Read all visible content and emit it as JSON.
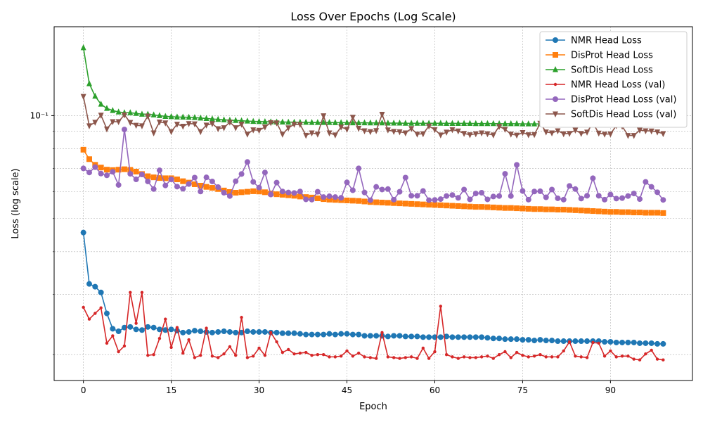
{
  "chart_data": {
    "type": "line",
    "title": "Loss Over Epochs (Log Scale)",
    "xlabel": "Epoch",
    "ylabel": "Loss (log scale)",
    "yscale": "log",
    "xlim": [
      -5,
      104
    ],
    "ylim": [
      0.0168,
      0.182
    ],
    "xticks": [
      0,
      15,
      30,
      45,
      60,
      75,
      90
    ],
    "yticks": [
      0.1
    ],
    "ytick_labels": [
      "10⁻¹"
    ],
    "grid": true,
    "legend_position": "top-right",
    "x": [
      0,
      1,
      2,
      3,
      4,
      5,
      6,
      7,
      8,
      9,
      10,
      11,
      12,
      13,
      14,
      15,
      16,
      17,
      18,
      19,
      20,
      21,
      22,
      23,
      24,
      25,
      26,
      27,
      28,
      29,
      30,
      31,
      32,
      33,
      34,
      35,
      36,
      37,
      38,
      39,
      40,
      41,
      42,
      43,
      44,
      45,
      46,
      47,
      48,
      49,
      50,
      51,
      52,
      53,
      54,
      55,
      56,
      57,
      58,
      59,
      60,
      61,
      62,
      63,
      64,
      65,
      66,
      67,
      68,
      69,
      70,
      71,
      72,
      73,
      74,
      75,
      76,
      77,
      78,
      79,
      80,
      81,
      82,
      83,
      84,
      85,
      86,
      87,
      88,
      89,
      90,
      91,
      92,
      93,
      94,
      95,
      96,
      97,
      98,
      99
    ],
    "series": [
      {
        "name": "NMR Head Loss",
        "color": "#1f77b4",
        "marker": "circle",
        "values": [
          0.0455,
          0.0322,
          0.0316,
          0.0304,
          0.0264,
          0.0238,
          0.0234,
          0.024,
          0.0241,
          0.0237,
          0.0236,
          0.0241,
          0.024,
          0.0237,
          0.0236,
          0.0237,
          0.0235,
          0.0232,
          0.0233,
          0.0235,
          0.0234,
          0.0233,
          0.0232,
          0.0233,
          0.0234,
          0.0233,
          0.0232,
          0.0232,
          0.0234,
          0.0233,
          0.0233,
          0.0233,
          0.0232,
          0.0232,
          0.0231,
          0.0231,
          0.0231,
          0.023,
          0.0229,
          0.0229,
          0.0229,
          0.0229,
          0.023,
          0.0229,
          0.023,
          0.023,
          0.0229,
          0.0229,
          0.0227,
          0.0227,
          0.0227,
          0.0227,
          0.0226,
          0.0227,
          0.0227,
          0.0226,
          0.0226,
          0.0226,
          0.0225,
          0.0225,
          0.0225,
          0.0225,
          0.0226,
          0.0225,
          0.0225,
          0.0225,
          0.0225,
          0.0225,
          0.0225,
          0.0224,
          0.0223,
          0.0223,
          0.0222,
          0.0222,
          0.0222,
          0.0221,
          0.0221,
          0.022,
          0.0221,
          0.022,
          0.022,
          0.0219,
          0.0219,
          0.0219,
          0.0219,
          0.0219,
          0.0219,
          0.0219,
          0.0219,
          0.0218,
          0.0218,
          0.0217,
          0.0217,
          0.0217,
          0.0217,
          0.0216,
          0.0216,
          0.0216,
          0.0215,
          0.0215
        ]
      },
      {
        "name": "DisProt Head Loss",
        "color": "#ff7f0e",
        "marker": "square",
        "values": [
          0.0795,
          0.0746,
          0.0718,
          0.0705,
          0.0695,
          0.0693,
          0.0695,
          0.0697,
          0.0694,
          0.0686,
          0.0675,
          0.0665,
          0.066,
          0.0657,
          0.0656,
          0.0656,
          0.0651,
          0.0643,
          0.0637,
          0.063,
          0.0624,
          0.0619,
          0.0615,
          0.061,
          0.0604,
          0.0598,
          0.0595,
          0.0597,
          0.0599,
          0.0601,
          0.06,
          0.0597,
          0.0592,
          0.0589,
          0.0587,
          0.0585,
          0.0583,
          0.058,
          0.0578,
          0.0576,
          0.0573,
          0.057,
          0.0568,
          0.0567,
          0.0566,
          0.0565,
          0.0564,
          0.0563,
          0.0561,
          0.0559,
          0.0558,
          0.0557,
          0.0556,
          0.0555,
          0.0554,
          0.0553,
          0.0552,
          0.0551,
          0.055,
          0.0549,
          0.0548,
          0.0547,
          0.0546,
          0.0545,
          0.0544,
          0.0543,
          0.0542,
          0.0541,
          0.0541,
          0.054,
          0.0539,
          0.0538,
          0.0537,
          0.0537,
          0.0536,
          0.0535,
          0.0534,
          0.0533,
          0.0533,
          0.0532,
          0.0532,
          0.0531,
          0.0531,
          0.053,
          0.0529,
          0.0528,
          0.0527,
          0.0526,
          0.0525,
          0.0524,
          0.0523,
          0.0523,
          0.0522,
          0.0522,
          0.0521,
          0.0521,
          0.052,
          0.052,
          0.052,
          0.0519
        ]
      },
      {
        "name": "SoftDis Head Loss",
        "color": "#2ca02c",
        "marker": "triangle",
        "values": [
          0.158,
          0.124,
          0.114,
          0.108,
          0.105,
          0.1035,
          0.1025,
          0.102,
          0.102,
          0.1015,
          0.101,
          0.101,
          0.1005,
          0.1,
          0.0995,
          0.0993,
          0.0991,
          0.099,
          0.0989,
          0.0987,
          0.0984,
          0.0981,
          0.0978,
          0.0975,
          0.0972,
          0.097,
          0.0968,
          0.0966,
          0.0964,
          0.0962,
          0.0961,
          0.096,
          0.0959,
          0.0958,
          0.0958,
          0.0957,
          0.0957,
          0.0956,
          0.0956,
          0.0955,
          0.0955,
          0.0955,
          0.0955,
          0.0954,
          0.0954,
          0.0954,
          0.0953,
          0.0953,
          0.0953,
          0.0952,
          0.0952,
          0.0952,
          0.0951,
          0.0951,
          0.0951,
          0.095,
          0.095,
          0.095,
          0.095,
          0.095,
          0.095,
          0.095,
          0.0949,
          0.0949,
          0.0949,
          0.0949,
          0.0949,
          0.0948,
          0.0948,
          0.0948,
          0.0948,
          0.0947,
          0.0947,
          0.0947,
          0.0947,
          0.0946,
          0.0946,
          0.0946,
          0.0946,
          0.0946,
          0.0946,
          0.0945,
          0.0945,
          0.0945,
          0.0945,
          0.0944,
          0.0944,
          0.0944,
          0.0944,
          0.0943,
          0.0943,
          0.0943,
          0.0943,
          0.0942,
          0.0942,
          0.0942,
          0.0942,
          0.0941,
          0.0941,
          0.0941
        ]
      },
      {
        "name": "NMR Head Loss (val)",
        "color": "#d62728",
        "marker": "dot",
        "values": [
          0.0275,
          0.0254,
          0.0264,
          0.0274,
          0.0216,
          0.0227,
          0.0204,
          0.0212,
          0.0304,
          0.0247,
          0.0304,
          0.0199,
          0.02,
          0.0223,
          0.0254,
          0.021,
          0.024,
          0.0202,
          0.0221,
          0.0196,
          0.0199,
          0.0239,
          0.0198,
          0.0196,
          0.0201,
          0.0211,
          0.0199,
          0.0257,
          0.0196,
          0.0198,
          0.0209,
          0.0199,
          0.0232,
          0.0218,
          0.0203,
          0.0207,
          0.0201,
          0.0202,
          0.0203,
          0.0199,
          0.02,
          0.02,
          0.0197,
          0.0197,
          0.0198,
          0.0205,
          0.0198,
          0.0202,
          0.0197,
          0.0196,
          0.0195,
          0.0232,
          0.0197,
          0.0196,
          0.0195,
          0.0196,
          0.0197,
          0.0195,
          0.0209,
          0.0195,
          0.0204,
          0.0277,
          0.02,
          0.0197,
          0.0195,
          0.0197,
          0.0196,
          0.0196,
          0.0197,
          0.0198,
          0.0195,
          0.02,
          0.0204,
          0.0196,
          0.0203,
          0.0199,
          0.0197,
          0.0198,
          0.02,
          0.0197,
          0.0197,
          0.0197,
          0.0205,
          0.0218,
          0.0198,
          0.0197,
          0.0196,
          0.0217,
          0.0216,
          0.0198,
          0.0205,
          0.0197,
          0.0198,
          0.0198,
          0.0194,
          0.0193,
          0.0201,
          0.0206,
          0.0194,
          0.0193
        ]
      },
      {
        "name": "DisProt Head Loss (val)",
        "color": "#9467bd",
        "marker": "circle",
        "values": [
          0.0701,
          0.0682,
          0.0707,
          0.0677,
          0.0669,
          0.0685,
          0.0627,
          0.0911,
          0.0676,
          0.0651,
          0.0673,
          0.0642,
          0.061,
          0.0692,
          0.0625,
          0.0651,
          0.062,
          0.0611,
          0.0631,
          0.0659,
          0.06,
          0.066,
          0.0642,
          0.0618,
          0.0595,
          0.0582,
          0.0643,
          0.0675,
          0.0732,
          0.064,
          0.0616,
          0.0682,
          0.0588,
          0.0637,
          0.06,
          0.0596,
          0.0594,
          0.06,
          0.0569,
          0.0568,
          0.0599,
          0.0578,
          0.0581,
          0.0578,
          0.0575,
          0.0638,
          0.0605,
          0.0701,
          0.0596,
          0.0566,
          0.0619,
          0.0608,
          0.061,
          0.0568,
          0.0599,
          0.0659,
          0.0583,
          0.0583,
          0.0602,
          0.0566,
          0.0567,
          0.057,
          0.0582,
          0.0586,
          0.0575,
          0.0608,
          0.0569,
          0.0592,
          0.0595,
          0.0569,
          0.058,
          0.0582,
          0.0676,
          0.0582,
          0.0718,
          0.0602,
          0.0568,
          0.06,
          0.0601,
          0.0577,
          0.0608,
          0.0573,
          0.0568,
          0.0623,
          0.061,
          0.0572,
          0.0583,
          0.0656,
          0.0583,
          0.0568,
          0.0588,
          0.0572,
          0.0574,
          0.0582,
          0.0592,
          0.057,
          0.064,
          0.0619,
          0.0597,
          0.0567
        ]
      },
      {
        "name": "SoftDis Head Loss (val)",
        "color": "#8c564b",
        "marker": "triangle-down",
        "values": [
          0.1138,
          0.0934,
          0.0956,
          0.1003,
          0.0914,
          0.096,
          0.096,
          0.1005,
          0.0955,
          0.0937,
          0.0934,
          0.0997,
          0.089,
          0.0958,
          0.0952,
          0.0898,
          0.0944,
          0.0931,
          0.0948,
          0.0946,
          0.0898,
          0.0938,
          0.0948,
          0.0916,
          0.0922,
          0.0957,
          0.0922,
          0.0944,
          0.0883,
          0.0909,
          0.0906,
          0.0926,
          0.0954,
          0.0952,
          0.0882,
          0.0921,
          0.0943,
          0.0942,
          0.0876,
          0.089,
          0.0883,
          0.0999,
          0.089,
          0.0878,
          0.0926,
          0.0912,
          0.0989,
          0.0918,
          0.0903,
          0.0898,
          0.0904,
          0.1009,
          0.0908,
          0.0899,
          0.0897,
          0.089,
          0.0917,
          0.0883,
          0.0885,
          0.0932,
          0.091,
          0.0878,
          0.0895,
          0.091,
          0.0902,
          0.0887,
          0.0879,
          0.0885,
          0.089,
          0.0885,
          0.0878,
          0.093,
          0.0912,
          0.0883,
          0.0877,
          0.0892,
          0.0879,
          0.088,
          0.095,
          0.0896,
          0.089,
          0.0903,
          0.0885,
          0.0887,
          0.0907,
          0.0887,
          0.0895,
          0.095,
          0.0889,
          0.0883,
          0.0884,
          0.0935,
          0.0931,
          0.0875,
          0.0875,
          0.0907,
          0.0903,
          0.0902,
          0.0896,
          0.0886
        ]
      }
    ]
  }
}
